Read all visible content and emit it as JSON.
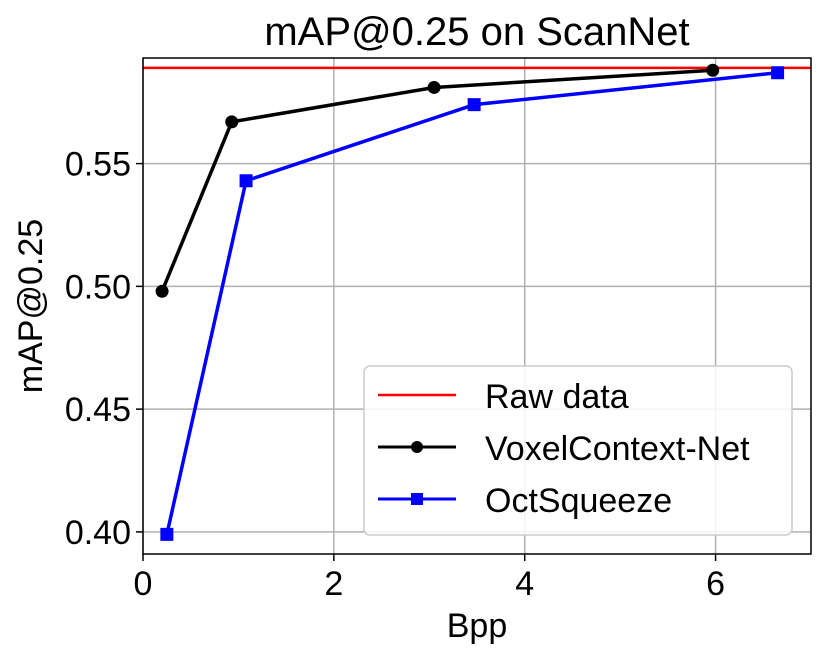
{
  "chart_data": {
    "type": "line",
    "title": "mAP@0.25 on ScanNet",
    "xlabel": "Bpp",
    "ylabel": "mAP@0.25",
    "xlim": [
      0,
      7
    ],
    "ylim": [
      0.391,
      0.593
    ],
    "xticks": [
      0,
      2,
      4,
      6
    ],
    "xtick_labels": [
      "0",
      "2",
      "4",
      "6"
    ],
    "yticks": [
      0.4,
      0.45,
      0.5,
      0.55
    ],
    "ytick_labels": [
      "0.40",
      "0.45",
      "0.50",
      "0.55"
    ],
    "grid": true,
    "legend_position": "bottom-right",
    "reference_line": {
      "name": "Raw data",
      "y": 0.589,
      "color": "#ff0000"
    },
    "series": [
      {
        "name": "VoxelContext-Net",
        "color": "#000000",
        "marker": "circle",
        "x": [
          0.2,
          0.93,
          3.05,
          5.97
        ],
        "y": [
          0.498,
          0.567,
          0.581,
          0.588
        ]
      },
      {
        "name": "OctSqueeze",
        "color": "#0000ff",
        "marker": "square",
        "x": [
          0.25,
          1.08,
          3.47,
          6.65
        ],
        "y": [
          0.399,
          0.543,
          0.574,
          0.587
        ]
      }
    ]
  }
}
